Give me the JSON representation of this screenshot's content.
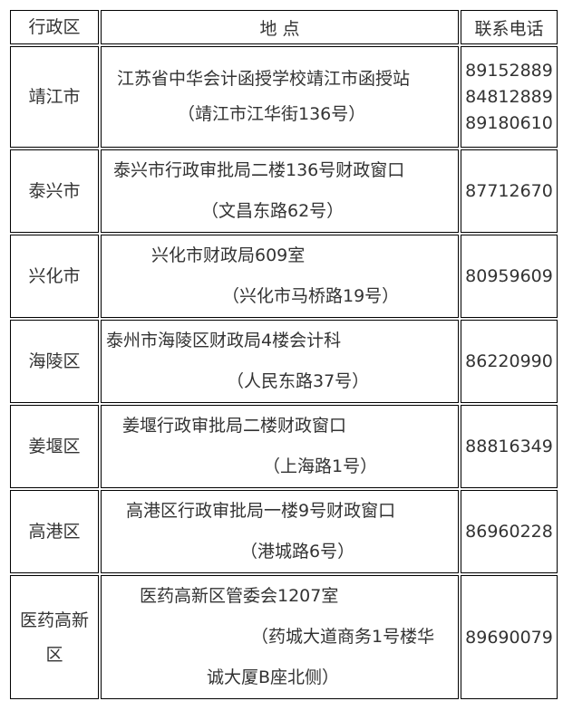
{
  "header": {
    "district": "行政区",
    "address": "地 点",
    "phone": "联系电话"
  },
  "rows": [
    {
      "district": "靖江市",
      "lines": [
        "江苏省中华会计函授学校靖江市函授站",
        "（靖江市江华街136号）"
      ],
      "phones": [
        "89152889",
        "84812889",
        "89180610"
      ]
    },
    {
      "district": "泰兴市",
      "lines": [
        "泰兴市行政审批局二楼136号财政窗口",
        "（文昌东路62号）"
      ],
      "phones": [
        "87712670"
      ]
    },
    {
      "district": "兴化市",
      "lines": [
        "兴化市财政局609室",
        "（兴化市马桥路19号）"
      ],
      "phones": [
        "80959609"
      ]
    },
    {
      "district": "海陵区",
      "lines": [
        "泰州市海陵区财政局4楼会计科",
        "（人民东路37号）"
      ],
      "phones": [
        "86220990"
      ]
    },
    {
      "district": "姜堰区",
      "lines": [
        "姜堰行政审批局二楼财政窗口",
        "（上海路1号）"
      ],
      "phones": [
        "88816349"
      ]
    },
    {
      "district": "高港区",
      "lines": [
        "高港区行政审批局一楼9号财政窗口",
        "（港城路6号）"
      ],
      "phones": [
        "86960228"
      ]
    },
    {
      "district": "医药高新区",
      "lines": [
        "医药高新区管委会1207室",
        "（药城大道商务1号楼华",
        "诚大厦B座北侧）"
      ],
      "phones": [
        "89690079"
      ]
    }
  ]
}
